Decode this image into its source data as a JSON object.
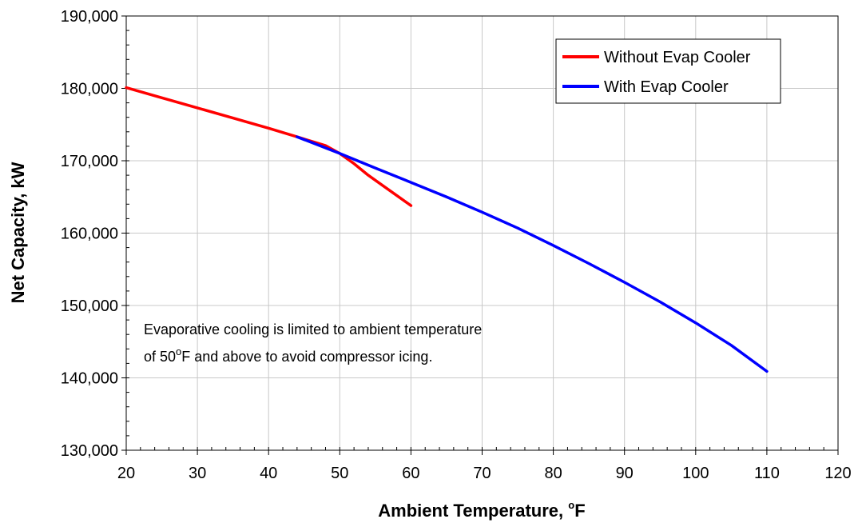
{
  "chart_data": {
    "type": "line",
    "xlabel": "Ambient Temperature, ",
    "xlabel_sup": "o",
    "xlabel_unit": "F",
    "ylabel": "Net Capacity, kW",
    "xlim": [
      20,
      120
    ],
    "ylim": [
      130000,
      190000
    ],
    "x_ticks": [
      "20",
      "30",
      "40",
      "50",
      "60",
      "70",
      "80",
      "90",
      "100",
      "110",
      "120"
    ],
    "y_ticks": [
      "130,000",
      "140,000",
      "150,000",
      "160,000",
      "170,000",
      "180,000",
      "190,000"
    ],
    "grid": true,
    "legend_position": "top-right",
    "series": [
      {
        "name": "Without Evap Cooler",
        "color": "#ff0000",
        "points": [
          [
            20,
            180100
          ],
          [
            25,
            178700
          ],
          [
            30,
            177300
          ],
          [
            35,
            175900
          ],
          [
            40,
            174500
          ],
          [
            44,
            173300
          ],
          [
            48,
            172100
          ],
          [
            50,
            171000
          ],
          [
            52,
            169600
          ],
          [
            54,
            168000
          ],
          [
            56,
            166600
          ],
          [
            58,
            165200
          ],
          [
            60,
            163800
          ]
        ]
      },
      {
        "name": "With Evap Cooler",
        "color": "#0000ff",
        "points": [
          [
            44,
            173300
          ],
          [
            50,
            171000
          ],
          [
            55,
            169000
          ],
          [
            60,
            167000
          ],
          [
            65,
            165000
          ],
          [
            70,
            162900
          ],
          [
            75,
            160700
          ],
          [
            80,
            158300
          ],
          [
            85,
            155800
          ],
          [
            90,
            153200
          ],
          [
            95,
            150500
          ],
          [
            100,
            147600
          ],
          [
            105,
            144500
          ],
          [
            110,
            140900
          ]
        ]
      }
    ],
    "annotation": {
      "line1": "Evaporative cooling is limited to ambient temperature",
      "line2_a": "of 50",
      "line2_sup": "o",
      "line2_b": "F and above to avoid compressor icing."
    }
  }
}
